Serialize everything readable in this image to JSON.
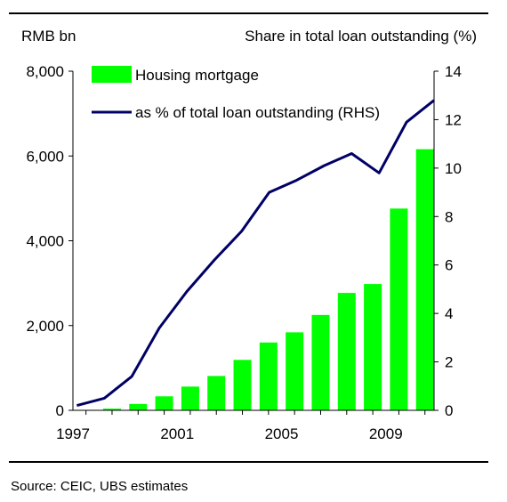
{
  "header": {
    "left_unit": "RMB bn",
    "right_unit": "Share in total loan outstanding (%)"
  },
  "source": "Source: CEIC, UBS estimates",
  "colors": {
    "bar": "#00ff00",
    "line": "#000066",
    "axis": "#000000"
  },
  "chart_data": {
    "type": "bar",
    "x_years": [
      1997,
      1998,
      1999,
      2000,
      2001,
      2002,
      2003,
      2004,
      2005,
      2006,
      2007,
      2008,
      2009,
      2010
    ],
    "x_tick_labels": [
      "1997",
      "2001",
      "2005",
      "2009"
    ],
    "series": [
      {
        "name": "Housing mortgage",
        "axis": "left",
        "type": "bar",
        "values": [
          0,
          40,
          150,
          330,
          560,
          810,
          1190,
          1600,
          1840,
          2250,
          2770,
          2980,
          4760,
          6160
        ]
      },
      {
        "name": "as % of total loan outstanding (RHS)",
        "axis": "right",
        "type": "line",
        "values": [
          0.2,
          0.5,
          1.4,
          3.4,
          4.9,
          6.2,
          7.4,
          9.0,
          9.5,
          10.1,
          10.6,
          9.8,
          11.9,
          12.8
        ]
      }
    ],
    "y_left": {
      "min": 0,
      "max": 8000,
      "ticks": [
        0,
        2000,
        4000,
        6000,
        8000
      ],
      "tick_labels": [
        "0",
        "2,000",
        "4,000",
        "6,000",
        "8,000"
      ]
    },
    "y_right": {
      "min": 0,
      "max": 14,
      "ticks": [
        0,
        2,
        4,
        6,
        8,
        10,
        12,
        14
      ],
      "tick_labels": [
        "0",
        "2",
        "4",
        "6",
        "8",
        "10",
        "12",
        "14"
      ]
    },
    "legend_position": "top-left",
    "grid": false
  }
}
